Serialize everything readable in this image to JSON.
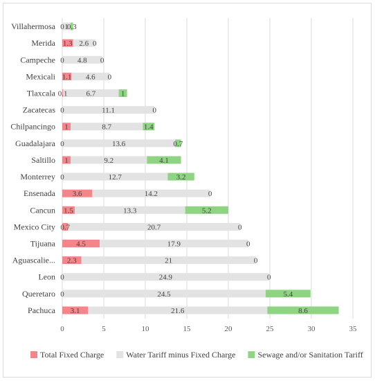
{
  "chart_data": {
    "type": "bar",
    "orientation": "horizontal",
    "stacked": true,
    "categories": [
      "Villahermosa",
      "Merida",
      "Campeche",
      "Mexicali",
      "Tlaxcala",
      "Zacatecas",
      "Chilpancingo",
      "Guadalajara",
      "Saltillo",
      "Monterrey",
      "Ensenada",
      "Cancun",
      "Mexico City",
      "Tijuana",
      "Aguascalie...",
      "Leon",
      "Queretaro",
      "Pachuca"
    ],
    "series": [
      {
        "name": "Total Fixed Charge",
        "color": "#f4858a",
        "values": [
          0,
          1.3,
          0,
          1.1,
          0.1,
          0,
          1,
          0,
          1,
          0,
          3.6,
          1.5,
          0.7,
          4.5,
          2.3,
          0,
          0,
          3.1
        ]
      },
      {
        "name": "Water Tariff minus Fixed Charge",
        "color": "#e3e3e3",
        "values": [
          1,
          2.6,
          4.8,
          4.6,
          6.7,
          11.1,
          8.7,
          13.6,
          9.2,
          12.7,
          14.2,
          13.3,
          20.7,
          17.9,
          21,
          24.9,
          24.5,
          21.6
        ]
      },
      {
        "name": "Sewage and/or Sanitation Tariff",
        "color": "#8fd483",
        "values": [
          0.3,
          0,
          0,
          0,
          1,
          0,
          1.4,
          0.7,
          4.1,
          3.2,
          0,
          5.2,
          0,
          0,
          0,
          0,
          5.4,
          8.6
        ]
      }
    ],
    "xlim": [
      0,
      35
    ],
    "xticks": [
      "0",
      "5",
      "10",
      "15",
      "20",
      "25",
      "30",
      "35"
    ],
    "grid": true,
    "legend": "bottom"
  }
}
